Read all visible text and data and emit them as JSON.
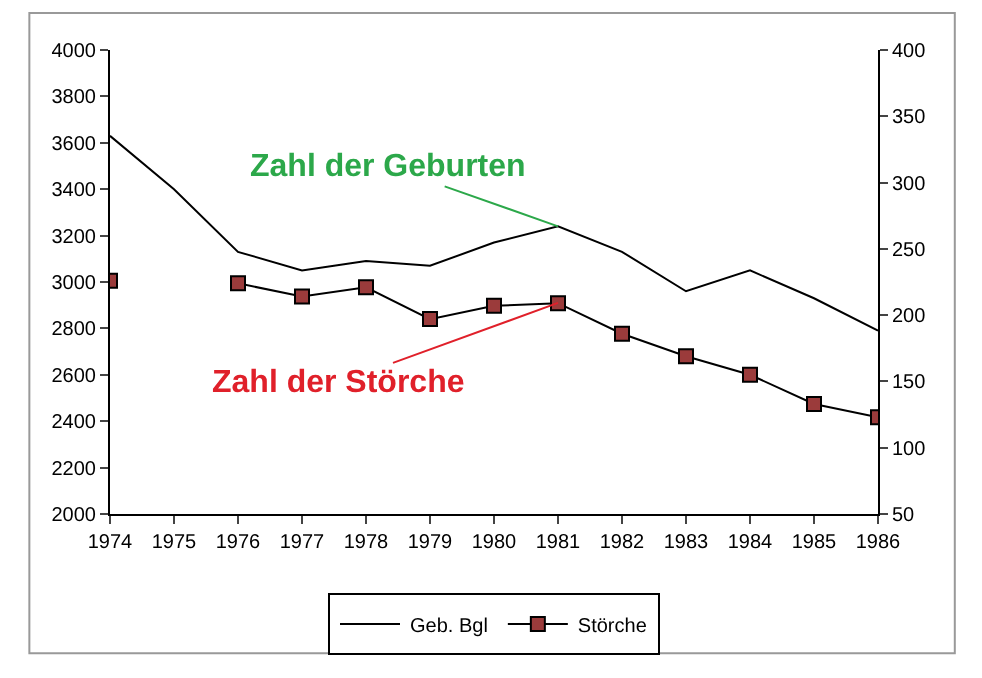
{
  "chart_data": {
    "type": "line",
    "categories": [
      "1974",
      "1975",
      "1976",
      "1977",
      "1978",
      "1979",
      "1980",
      "1981",
      "1982",
      "1983",
      "1984",
      "1985",
      "1986"
    ],
    "series": [
      {
        "name": "Geb. Bgl",
        "color": "#000000",
        "marker": "none",
        "values": [
          3630,
          3400,
          3130,
          3050,
          3090,
          3070,
          3170,
          3240,
          3130,
          2960,
          3050,
          2930,
          2790
        ]
      },
      {
        "name": "Störche",
        "color": "#9b3b3b",
        "marker": "square",
        "axis": "y2",
        "values": [
          226,
          null,
          224,
          214,
          221,
          197,
          207,
          209,
          186,
          169,
          155,
          133,
          123
        ]
      }
    ],
    "ylim": [
      2000,
      4000
    ],
    "yticks": [
      2000,
      2200,
      2400,
      2600,
      2800,
      3000,
      3200,
      3400,
      3600,
      3800,
      4000
    ],
    "y2lim": [
      50,
      400
    ],
    "y2ticks": [
      50,
      100,
      150,
      200,
      250,
      300,
      350,
      400
    ],
    "annotations": [
      {
        "text": "Zahl der Geburten",
        "x": "1981",
        "y": 3240
      },
      {
        "text": "Zahl der Störche",
        "x": "1981",
        "y": 2910
      }
    ],
    "grid": false,
    "legend": "bottom",
    "line_style": "solid"
  }
}
